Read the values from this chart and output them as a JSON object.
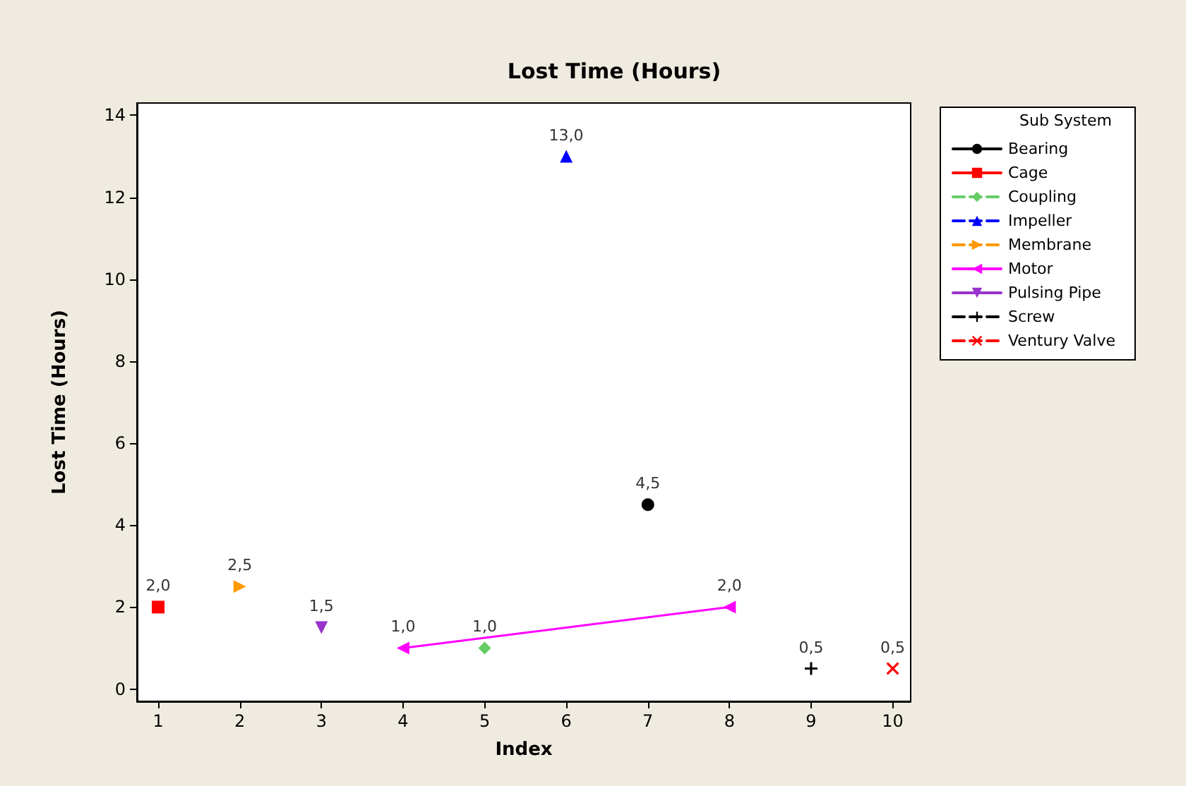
{
  "chart_data": {
    "type": "line",
    "title": "Lost Time (Hours)",
    "xlabel": "Index",
    "ylabel": "Lost Time (Hours)",
    "legend_title": "Sub System",
    "legend": "right",
    "grid": false,
    "xlim": [
      0.74,
      10.22
    ],
    "xticks": [
      1,
      2,
      3,
      4,
      5,
      6,
      7,
      8,
      9,
      10
    ],
    "ylim": [
      -0.3,
      14.3
    ],
    "yticks": [
      0,
      2,
      4,
      6,
      8,
      10,
      12,
      14
    ],
    "series": [
      {
        "name": "Bearing",
        "color": "#000000",
        "marker": "circle",
        "line_style": "solid",
        "x": [
          7
        ],
        "values": [
          4.5
        ],
        "value_labels": [
          "4,5"
        ]
      },
      {
        "name": "Cage",
        "color": "#ff0000",
        "marker": "square",
        "line_style": "solid",
        "x": [
          1
        ],
        "values": [
          2.0
        ],
        "value_labels": [
          "2,0"
        ]
      },
      {
        "name": "Coupling",
        "color": "#66cc66",
        "marker": "diamond",
        "line_style": "dashed",
        "x": [
          5
        ],
        "values": [
          1.0
        ],
        "value_labels": [
          "1,0"
        ]
      },
      {
        "name": "Impeller",
        "color": "#0000ff",
        "marker": "triangle",
        "line_style": "dashed",
        "x": [
          6
        ],
        "values": [
          13.0
        ],
        "value_labels": [
          "13,0"
        ]
      },
      {
        "name": "Membrane",
        "color": "#ff9900",
        "marker": "triangle-right",
        "line_style": "dashed",
        "x": [
          2
        ],
        "values": [
          2.5
        ],
        "value_labels": [
          "2,5"
        ]
      },
      {
        "name": "Motor",
        "color": "#ff00ff",
        "marker": "triangle-left",
        "line_style": "solid",
        "x": [
          4,
          8
        ],
        "values": [
          1.0,
          2.0
        ],
        "value_labels": [
          "1,0",
          "2,0"
        ]
      },
      {
        "name": "Pulsing Pipe",
        "color": "#9933cc",
        "marker": "triangle-down",
        "line_style": "solid",
        "x": [
          3
        ],
        "values": [
          1.5
        ],
        "value_labels": [
          "1,5"
        ]
      },
      {
        "name": "Screw",
        "color": "#000000",
        "marker": "cross",
        "line_style": "dashed",
        "x": [
          9
        ],
        "values": [
          0.5
        ],
        "value_labels": [
          "0,5"
        ]
      },
      {
        "name": "Ventury Valve",
        "color": "#ff0000",
        "marker": "x",
        "line_style": "dashed",
        "x": [
          10
        ],
        "values": [
          0.5
        ],
        "value_labels": [
          "0,5"
        ]
      }
    ]
  }
}
